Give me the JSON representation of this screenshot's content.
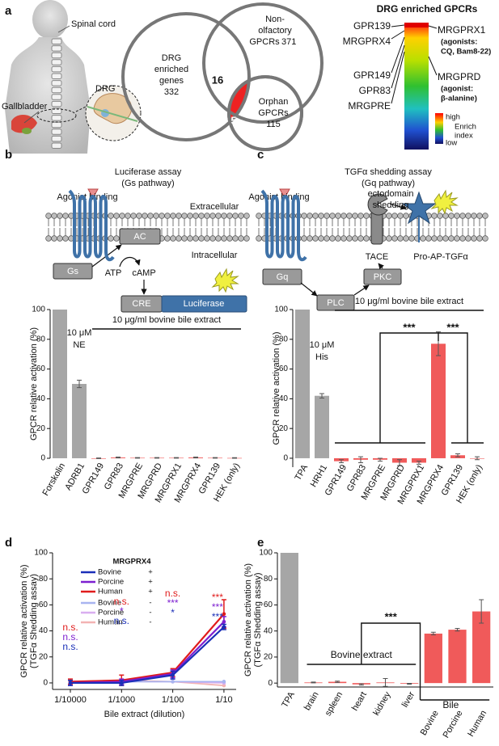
{
  "panel_labels": [
    "a",
    "b",
    "c",
    "d",
    "e"
  ],
  "anatomy": {
    "spinal_cord": "Spinal cord",
    "gallbladder": "Gallbladder",
    "drg": "DRG"
  },
  "venn": {
    "drg": {
      "lines": [
        "DRG",
        "enriched",
        "genes"
      ],
      "count": 332
    },
    "gpcr": {
      "lines": [
        "Non-",
        "olfactory",
        "GPCRs"
      ],
      "count": 371
    },
    "orphan": {
      "lines": [
        "Orphan",
        "GPCRs"
      ],
      "count": 115
    },
    "drg_gpcr_overlap": 16,
    "drg_orphan_overlap": 5
  },
  "heatmap": {
    "title": "DRG enriched GPCRs",
    "left_labels": [
      "GPR139",
      "MRGPRX4",
      "GPR149",
      "GPR83",
      "MRGPRE"
    ],
    "right_labels": [
      {
        "name": "MRGPRX1",
        "note": [
          "(agonists:",
          "CQ, Bam8-22)"
        ]
      },
      {
        "name": "MRGPRD",
        "note": [
          "(agonist:",
          "β-alanine)"
        ]
      }
    ],
    "legend": {
      "high": "high",
      "low": "low",
      "title": [
        "Enrich",
        "index"
      ]
    }
  },
  "diagram_b": {
    "title": [
      "Luciferase assay",
      "(Gs pathway)"
    ],
    "agonist": "Agonist binding",
    "extracellular": "Extracellular",
    "intracellular": "Intracellular",
    "ac": "AC",
    "gs": "Gs",
    "atp": "ATP",
    "camp": "cAMP",
    "cre": "CRE",
    "luciferase": "Luciferase"
  },
  "diagram_c": {
    "title": [
      "TGFα shedding assay",
      "(Gq pathway)"
    ],
    "agonist": "Agonist binding",
    "shedding": [
      "ectodomain",
      "shedding"
    ],
    "gq": "Gq",
    "plc": "PLC",
    "pkc": "PKC",
    "tace": "TACE",
    "substrate": "Pro-AP-TGFα"
  },
  "chart_data": [
    {
      "type": "bar",
      "ylabel": [
        "GPCR relative activation (%)"
      ],
      "categories": [
        "Forskolin",
        "ADRB1",
        "GPR149",
        "GPR83",
        "MRGPRE",
        "MRGPRD",
        "MRGPRX1",
        "MRGPRX4",
        "GPR139",
        "HEK (only)"
      ],
      "values": [
        100,
        50,
        0,
        0.5,
        0.3,
        0.3,
        0.3,
        0.5,
        0.3,
        0.2
      ],
      "errors": [
        0,
        2.5,
        0.2,
        0.3,
        0.2,
        0.2,
        0.2,
        0.3,
        0.2,
        0.2
      ],
      "colors": [
        "#a6a6a6",
        "#a6a6a6",
        "#f05a5a",
        "#f05a5a",
        "#f05a5a",
        "#f05a5a",
        "#f05a5a",
        "#f05a5a",
        "#f05a5a",
        "#f05a5a"
      ],
      "ylim": [
        0,
        100
      ],
      "yticks": [
        0,
        20,
        40,
        60,
        80,
        100
      ],
      "annotation": [
        "10 μM",
        "NE"
      ],
      "bracket_label": "10 μg/ml bovine bile extract"
    },
    {
      "type": "bar",
      "ylabel": [
        "GPCR relative activation (%)"
      ],
      "categories": [
        "TPA",
        "HRH1",
        "GPR149",
        "GPR83",
        "MRGPRE",
        "MRGPRD",
        "MRGPRX1",
        "MRGPRX4",
        "GPR139",
        "HEK (only)"
      ],
      "values": [
        100,
        42,
        -2,
        -1,
        -1,
        -3,
        -3,
        77,
        2,
        0
      ],
      "errors": [
        0,
        1.5,
        1,
        2,
        1,
        2,
        1,
        8,
        1,
        1
      ],
      "colors": [
        "#a6a6a6",
        "#a6a6a6",
        "#f05a5a",
        "#f05a5a",
        "#f05a5a",
        "#f05a5a",
        "#f05a5a",
        "#f05a5a",
        "#f05a5a",
        "#f05a5a"
      ],
      "ylim": [
        -6,
        100
      ],
      "yticks": [
        0,
        20,
        40,
        60,
        80,
        100
      ],
      "annotation": [
        "10 μM",
        "His"
      ],
      "bracket_label": "10 μg/ml bovine bile extract",
      "significance": [
        "***",
        "***"
      ]
    },
    {
      "type": "line",
      "ylabel": [
        "GPCR relative activation (%)",
        "(TGFα Shedding assay)"
      ],
      "xlabel": "Bile extract (dilution)",
      "categories": [
        "1/10000",
        "1/1000",
        "1/100",
        "1/10"
      ],
      "ylim": [
        -5,
        100
      ],
      "yticks": [
        0,
        20,
        40,
        60,
        80,
        100
      ],
      "legend_title": "MRGPRX4",
      "series": [
        {
          "name": "Bovine",
          "receptor": "+",
          "color": "#1a2fb8",
          "values": [
            0,
            0,
            6,
            43
          ],
          "errors": [
            2,
            2,
            3,
            2
          ],
          "significance": [
            "n.s.",
            "n.s.",
            "*",
            "***"
          ]
        },
        {
          "name": "Porcine",
          "receptor": "+",
          "color": "#7d1fd0",
          "values": [
            0,
            1,
            7,
            47
          ],
          "errors": [
            2,
            2,
            3,
            4
          ],
          "significance": [
            "n.s.",
            "*",
            "***",
            "***"
          ]
        },
        {
          "name": "Human",
          "receptor": "+",
          "color": "#e01b1b",
          "values": [
            1,
            2,
            8,
            53
          ],
          "errors": [
            2,
            4,
            3,
            11
          ],
          "significance": [
            "n.s.",
            "n.s.",
            "n.s.",
            "***"
          ]
        },
        {
          "name": "Bovine",
          "receptor": "-",
          "color": "#a8b4f0",
          "values": [
            0,
            1,
            1,
            1
          ]
        },
        {
          "name": "Porcine",
          "receptor": "-",
          "color": "#d9aef0",
          "values": [
            0,
            1,
            1,
            0
          ]
        },
        {
          "name": "Human",
          "receptor": "-",
          "color": "#f3b3b3",
          "values": [
            1,
            2,
            1,
            -2
          ]
        }
      ]
    },
    {
      "type": "bar",
      "ylabel": [
        "GPCR relative activation (%)",
        "(TGFα Shedding assay)"
      ],
      "categories": [
        "TPA",
        "brain",
        "spleen",
        "heart",
        "kidney",
        "liver",
        "Bovine",
        "Porcine",
        "Human"
      ],
      "values": [
        100,
        0.5,
        1,
        -1,
        0.5,
        -0.5,
        38,
        41,
        55
      ],
      "errors": [
        0,
        0.3,
        0.5,
        0.5,
        3,
        0.3,
        1,
        1,
        9
      ],
      "colors": [
        "#a6a6a6",
        "#f05a5a",
        "#f05a5a",
        "#f05a5a",
        "#f05a5a",
        "#f05a5a",
        "#f05a5a",
        "#f05a5a",
        "#f05a5a"
      ],
      "ylim": [
        -3,
        100
      ],
      "yticks": [
        0,
        20,
        40,
        60,
        80,
        100
      ],
      "groups": [
        "Bovine extract",
        "Bile"
      ],
      "significance": "***"
    }
  ]
}
